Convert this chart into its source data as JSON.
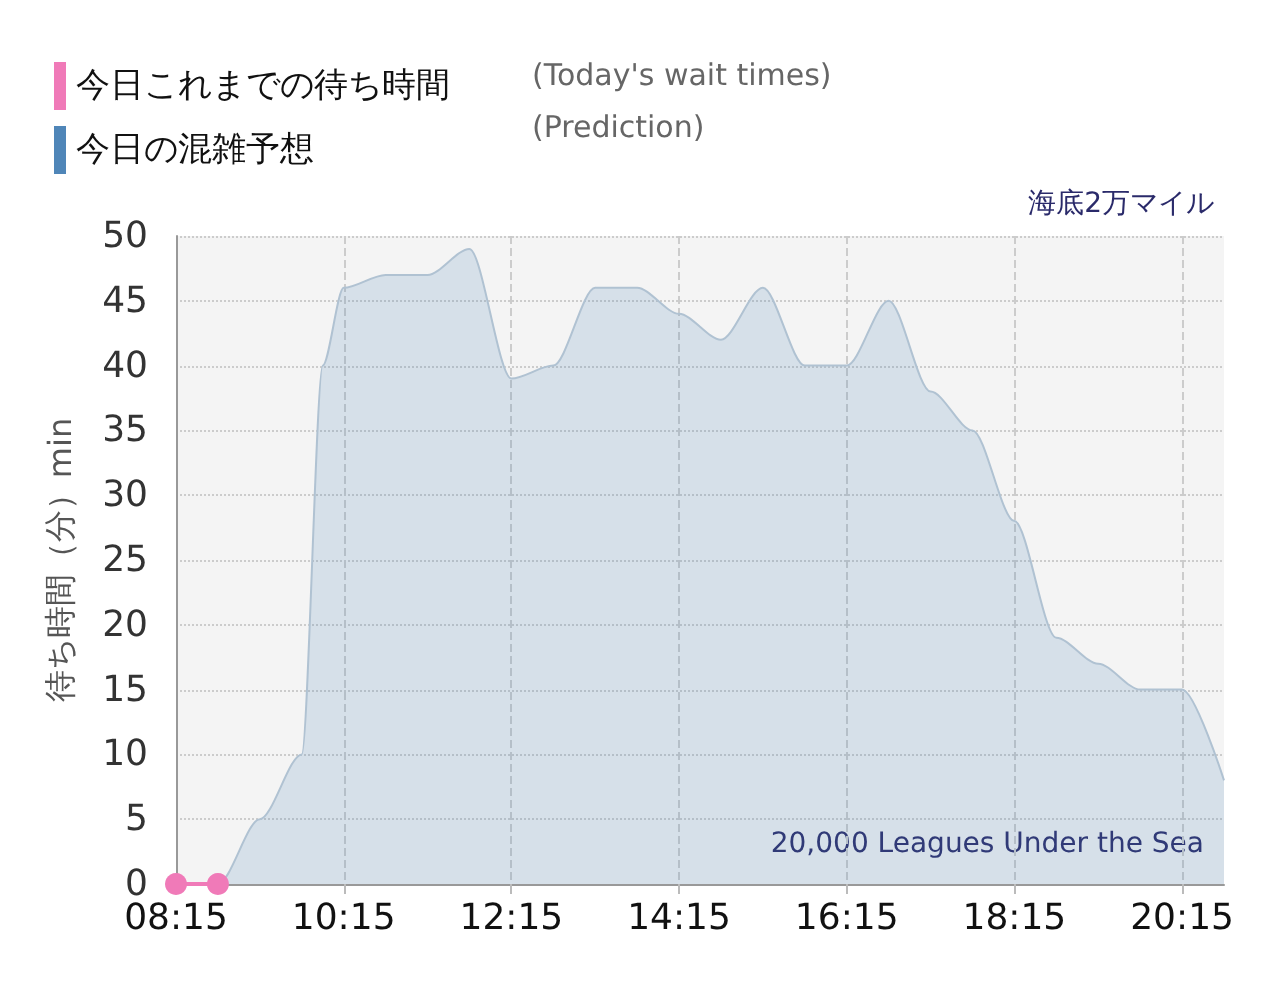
{
  "chart_data": {
    "type": "area",
    "title": "海底2万マイル",
    "ylabel": "待ち時間（分）min",
    "annotations": [
      "(Today's wait times)",
      "(Prediction)",
      "20,000 Leagues Under the Sea"
    ],
    "series": [
      {
        "name": "今日これまでの待ち時間",
        "type": "line",
        "marker": "circle",
        "color": "#f07ab8",
        "x": [
          8.25,
          8.75
        ],
        "values": [
          0,
          0
        ]
      },
      {
        "name": "今日の混雑予想",
        "type": "area",
        "marker": "none",
        "color": "#4f86b8",
        "x": [
          8.25,
          8.75,
          9.25,
          9.75,
          10.0,
          10.25,
          10.75,
          11.25,
          11.75,
          12.25,
          12.75,
          13.25,
          13.75,
          14.25,
          14.75,
          15.25,
          15.75,
          16.25,
          16.75,
          17.25,
          17.75,
          18.25,
          18.75,
          19.25,
          19.75,
          20.25,
          20.75
        ],
        "values": [
          0,
          0,
          5,
          10,
          40,
          46,
          47,
          47,
          49,
          39,
          40,
          46,
          46,
          44,
          42,
          46,
          40,
          40,
          45,
          38,
          35,
          28,
          19,
          17,
          15,
          15,
          8
        ]
      }
    ],
    "xlim": [
      8.25,
      20.75
    ],
    "xticks": [
      {
        "value": 8.25,
        "label": "08:15"
      },
      {
        "value": 10.25,
        "label": "10:15"
      },
      {
        "value": 12.25,
        "label": "12:15"
      },
      {
        "value": 14.25,
        "label": "14:15"
      },
      {
        "value": 16.25,
        "label": "16:15"
      },
      {
        "value": 18.25,
        "label": "18:15"
      },
      {
        "value": 20.25,
        "label": "20:15"
      }
    ],
    "ylim": [
      0,
      50
    ],
    "yticks": [
      0,
      5,
      10,
      15,
      20,
      25,
      30,
      35,
      40,
      45,
      50
    ],
    "grid": true,
    "legend": "top left"
  }
}
